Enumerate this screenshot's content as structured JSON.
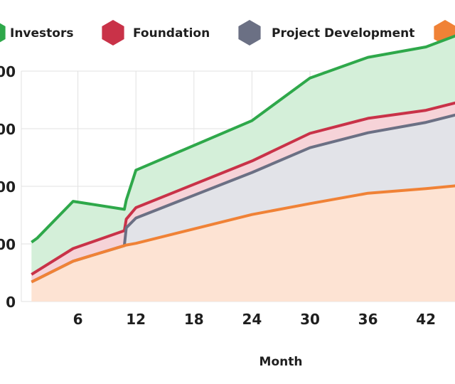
{
  "chart_data": {
    "type": "area",
    "stacked": true,
    "xlabel": "Month",
    "ylabel": "",
    "x_ticks": [
      6,
      12,
      18,
      24,
      30,
      36,
      42
    ],
    "y_ticks_visible_labels": [
      "0",
      "00",
      "00",
      "00",
      "00"
    ],
    "grid": true,
    "legend_placement": "top",
    "series": [
      {
        "name": "Investors",
        "color": "#2ea84a",
        "fill": "#d4efd9",
        "values": [
          [
            1.2,
            0.56
          ],
          [
            1.8,
            0.57
          ],
          [
            5.5,
            0.82
          ],
          [
            10.8,
            0.37
          ],
          [
            11,
            0.33
          ],
          [
            12,
            0.65
          ],
          [
            24,
            0.7
          ],
          [
            30,
            0.96
          ],
          [
            36,
            1.06
          ],
          [
            42,
            1.1
          ],
          [
            45.8,
            1.18
          ]
        ]
      },
      {
        "name": "Foundation",
        "color": "#c93248",
        "fill": "#f6d3d8",
        "values": [
          [
            1.2,
            0.13
          ],
          [
            5.5,
            0.22
          ],
          [
            10.8,
            0.26
          ],
          [
            11,
            0.15
          ],
          [
            12,
            0.18
          ],
          [
            24,
            0.2
          ],
          [
            30,
            0.25
          ],
          [
            36,
            0.25
          ],
          [
            42,
            0.21
          ],
          [
            45.8,
            0.21
          ]
        ]
      },
      {
        "name": "Project Development",
        "color": "#6b7084",
        "fill": "#e2e3e8",
        "values": [
          [
            1.2,
            0
          ],
          [
            10.8,
            0
          ],
          [
            11,
            0.3
          ],
          [
            12,
            0.44
          ],
          [
            24,
            0.73
          ],
          [
            30,
            0.97
          ],
          [
            36,
            1.05
          ],
          [
            42,
            1.15
          ],
          [
            45.8,
            1.25
          ]
        ]
      },
      {
        "name": "",
        "color": "#f08236",
        "fill": "#fde3d3",
        "values": [
          [
            1.2,
            0.34
          ],
          [
            5.5,
            0.7
          ],
          [
            10.8,
            0.97
          ],
          [
            11,
            0.98
          ],
          [
            12,
            1.01
          ],
          [
            24,
            1.51
          ],
          [
            30,
            1.7
          ],
          [
            36,
            1.88
          ],
          [
            42,
            1.96
          ],
          [
            45.8,
            2.02
          ]
        ]
      }
    ]
  }
}
